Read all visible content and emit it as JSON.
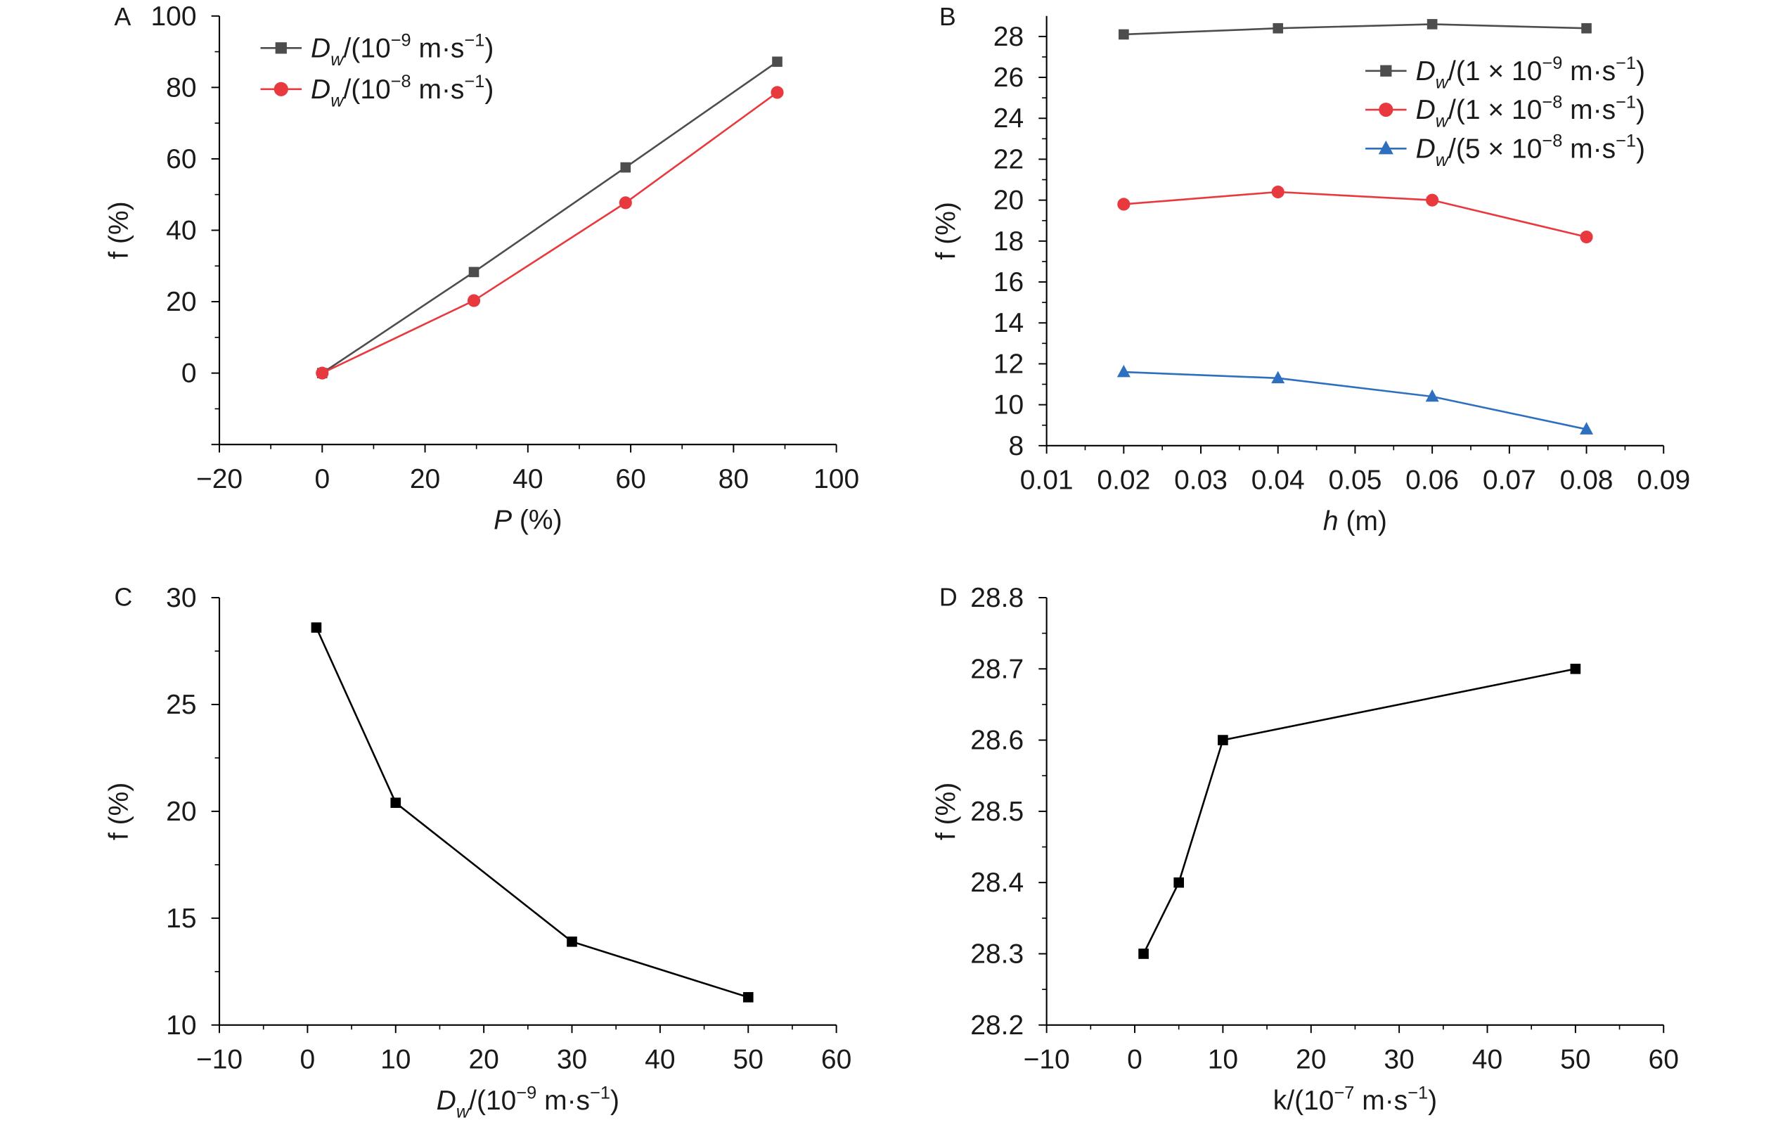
{
  "chart_data": [
    {
      "panel": "A",
      "type": "line",
      "xlabel": "*P* (%)",
      "ylabel": "f (%)",
      "xlim": [
        -20,
        100
      ],
      "ylim": [
        -20,
        100
      ],
      "xticks": [
        -20,
        0,
        20,
        40,
        60,
        80,
        100
      ],
      "yticks": [
        0,
        20,
        40,
        60,
        80,
        100
      ],
      "legend": "top-left",
      "grid": false,
      "series": [
        {
          "name": "*D*_{*w*}/(10^{−9} m·s^{−1})",
          "color": "#4d4d4d",
          "marker": "square",
          "x": [
            0,
            29.5,
            59,
            88.5
          ],
          "y": [
            0,
            28.3,
            57.6,
            87.2
          ]
        },
        {
          "name": "*D*_{*w*}/(10^{−8} m·s^{−1})",
          "color": "#e8393f",
          "marker": "circle",
          "x": [
            0,
            29.5,
            59,
            88.5
          ],
          "y": [
            0,
            20.3,
            47.7,
            78.6
          ]
        }
      ]
    },
    {
      "panel": "B",
      "type": "line",
      "xlabel": "*h* (m)",
      "ylabel": "f (%)",
      "xlim": [
        0.01,
        0.09
      ],
      "ylim": [
        8,
        29
      ],
      "xticks": [
        0.01,
        0.02,
        0.03,
        0.04,
        0.05,
        0.06,
        0.07,
        0.08,
        0.09
      ],
      "yticks": [
        8,
        10,
        12,
        14,
        16,
        18,
        20,
        22,
        24,
        26,
        28
      ],
      "legend": "top-right",
      "grid": false,
      "series": [
        {
          "name": "*D*_{*w*}/(1 × 10^{−9} m·s^{−1})",
          "color": "#4d4d4d",
          "marker": "square",
          "x": [
            0.02,
            0.04,
            0.06,
            0.08
          ],
          "y": [
            28.1,
            28.4,
            28.6,
            28.4
          ]
        },
        {
          "name": "*D*_{*w*}/(1 × 10^{−8} m·s^{−1})",
          "color": "#e8393f",
          "marker": "circle",
          "x": [
            0.02,
            0.04,
            0.06,
            0.08
          ],
          "y": [
            19.8,
            20.4,
            20.0,
            18.2
          ]
        },
        {
          "name": "*D*_{*w*}/(5 × 10^{−8} m·s^{−1})",
          "color": "#2e6fbf",
          "marker": "triangle",
          "x": [
            0.02,
            0.04,
            0.06,
            0.08
          ],
          "y": [
            11.6,
            11.3,
            10.4,
            8.8
          ]
        }
      ]
    },
    {
      "panel": "C",
      "type": "line",
      "xlabel": "*D*_{*w*}/(10^{−9} m·s^{−1})",
      "ylabel": "f (%)",
      "xlim": [
        -10,
        60
      ],
      "ylim": [
        10,
        30
      ],
      "xticks": [
        -10,
        0,
        10,
        20,
        30,
        40,
        50,
        60
      ],
      "yticks": [
        10,
        15,
        20,
        25,
        30
      ],
      "grid": false,
      "series": [
        {
          "color": "#000000",
          "marker": "square",
          "x": [
            1,
            10,
            30,
            50
          ],
          "y": [
            28.6,
            20.4,
            13.9,
            11.3
          ]
        }
      ]
    },
    {
      "panel": "D",
      "type": "line",
      "xlabel": "k/(10^{−7} m·s^{−1})",
      "ylabel": "f (%)",
      "xlim": [
        -10,
        60
      ],
      "ylim": [
        28.2,
        28.8
      ],
      "xticks": [
        -10,
        0,
        10,
        20,
        30,
        40,
        50,
        60
      ],
      "yticks": [
        28.2,
        28.3,
        28.4,
        28.5,
        28.6,
        28.7,
        28.8
      ],
      "grid": false,
      "series": [
        {
          "color": "#000000",
          "marker": "square",
          "x": [
            1,
            5,
            10,
            50
          ],
          "y": [
            28.3,
            28.4,
            28.6,
            28.7
          ]
        }
      ]
    }
  ]
}
